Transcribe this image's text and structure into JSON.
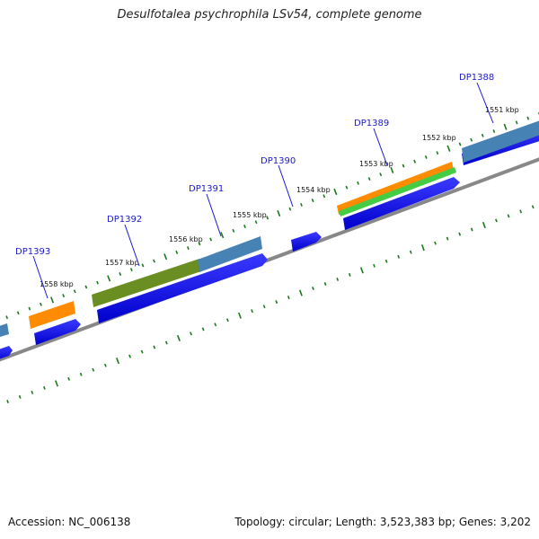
{
  "title": "Desulfotalea psychrophila LSv54, complete genome",
  "footer": {
    "accession": "Accession: NC_006138",
    "topology": "Topology: circular; Length: 3,523,383 bp; Genes: 3,202"
  },
  "colors": {
    "gene_cds": "#0000ee",
    "backbone": "#888888",
    "tick": "#1a7a1a",
    "label": "#1a1acc",
    "feature_orange": "#ff8c00",
    "feature_green": "#44cc44",
    "feature_olive": "#6b8e23",
    "feature_steel": "#4682b4"
  },
  "scale_labels": [
    "1551 kbp",
    "1552 kbp",
    "1553 kbp",
    "1554 kbp",
    "1555 kbp",
    "1556 kbp",
    "1557 kbp",
    "1558 kbp"
  ],
  "gene_labels": [
    "DP1388",
    "DP1389",
    "DP1390",
    "DP1391",
    "DP1392",
    "DP1393"
  ]
}
